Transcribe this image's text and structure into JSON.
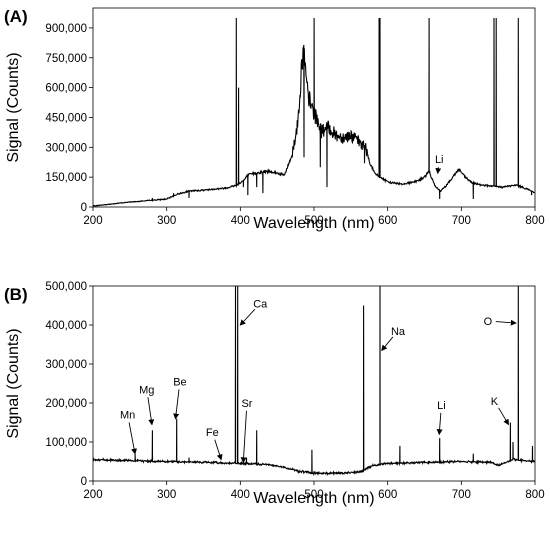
{
  "chart_data": [
    {
      "panel_label": "(A)",
      "type": "line",
      "xlabel": "Wavelength (nm)",
      "ylabel": "Signal (Counts)",
      "xlim": [
        200,
        800
      ],
      "ylim": [
        0,
        1000000
      ],
      "xticks": [
        200,
        300,
        400,
        500,
        600,
        700,
        800
      ],
      "yticks": [
        0,
        150000,
        300000,
        450000,
        600000,
        750000,
        900000
      ],
      "ytick_labels": [
        "0",
        "150,000",
        "300,000",
        "450,000",
        "600,000",
        "750,000",
        "900,000"
      ],
      "grid": false,
      "baseline": [
        [
          200,
          5000
        ],
        [
          250,
          25000
        ],
        [
          300,
          40000
        ],
        [
          315,
          65000
        ],
        [
          330,
          80000
        ],
        [
          350,
          85000
        ],
        [
          380,
          95000
        ],
        [
          395,
          110000
        ],
        [
          405,
          135000
        ],
        [
          410,
          160000
        ],
        [
          420,
          170000
        ],
        [
          440,
          180000
        ],
        [
          460,
          160000
        ],
        [
          470,
          260000
        ],
        [
          478,
          420000
        ],
        [
          483,
          690000
        ],
        [
          486,
          800000
        ],
        [
          490,
          600000
        ],
        [
          495,
          520000
        ],
        [
          500,
          470000
        ],
        [
          505,
          430000
        ],
        [
          510,
          380000
        ],
        [
          520,
          400000
        ],
        [
          530,
          360000
        ],
        [
          540,
          350000
        ],
        [
          550,
          360000
        ],
        [
          560,
          330000
        ],
        [
          570,
          300000
        ],
        [
          575,
          230000
        ],
        [
          582,
          170000
        ],
        [
          600,
          125000
        ],
        [
          620,
          115000
        ],
        [
          640,
          130000
        ],
        [
          650,
          150000
        ],
        [
          656,
          180000
        ],
        [
          665,
          100000
        ],
        [
          672,
          80000
        ],
        [
          680,
          110000
        ],
        [
          690,
          160000
        ],
        [
          697,
          190000
        ],
        [
          705,
          150000
        ],
        [
          715,
          120000
        ],
        [
          730,
          110000
        ],
        [
          740,
          105000
        ],
        [
          755,
          100000
        ],
        [
          775,
          110000
        ],
        [
          790,
          90000
        ],
        [
          800,
          70000
        ]
      ],
      "peaks": [
        [
          256,
          30000
        ],
        [
          280,
          45000
        ],
        [
          309,
          70000
        ],
        [
          330,
          45000
        ],
        [
          394,
          950000
        ],
        [
          397,
          600000
        ],
        [
          404,
          100000
        ],
        [
          410,
          60000
        ],
        [
          422,
          100000
        ],
        [
          430,
          70000
        ],
        [
          486,
          250000
        ],
        [
          500,
          950000
        ],
        [
          508,
          200000
        ],
        [
          517,
          100000
        ],
        [
          568,
          220000
        ],
        [
          588,
          950000
        ],
        [
          589,
          950000
        ],
        [
          656,
          950000
        ],
        [
          670,
          40000
        ],
        [
          716,
          40000
        ],
        [
          744,
          950000
        ],
        [
          747,
          950000
        ],
        [
          777,
          950000
        ],
        [
          795,
          60000
        ]
      ],
      "annotations": [
        {
          "text": "Li",
          "x": 670,
          "y": 220000,
          "arrow_to": [
            668,
            170000
          ]
        }
      ]
    },
    {
      "panel_label": "(B)",
      "type": "line",
      "xlabel": "Wavelength (nm)",
      "ylabel": "Signal (Counts)",
      "xlim": [
        200,
        800
      ],
      "ylim": [
        0,
        500000
      ],
      "xticks": [
        200,
        300,
        400,
        500,
        600,
        700,
        800
      ],
      "yticks": [
        0,
        100000,
        200000,
        300000,
        400000,
        500000
      ],
      "ytick_labels": [
        "0",
        "100,000",
        "200,000",
        "300,000",
        "400,000",
        "500,000"
      ],
      "grid": false,
      "baseline": [
        [
          200,
          55000
        ],
        [
          250,
          52000
        ],
        [
          300,
          50000
        ],
        [
          350,
          48000
        ],
        [
          400,
          45000
        ],
        [
          440,
          42000
        ],
        [
          460,
          35000
        ],
        [
          480,
          25000
        ],
        [
          500,
          20000
        ],
        [
          540,
          20000
        ],
        [
          565,
          25000
        ],
        [
          580,
          40000
        ],
        [
          600,
          45000
        ],
        [
          650,
          48000
        ],
        [
          700,
          50000
        ],
        [
          740,
          48000
        ],
        [
          750,
          40000
        ],
        [
          770,
          55000
        ],
        [
          800,
          50000
        ]
      ],
      "peaks": [
        [
          257,
          70000
        ],
        [
          280,
          130000
        ],
        [
          313,
          160000
        ],
        [
          330,
          60000
        ],
        [
          393,
          500000
        ],
        [
          396,
          500000
        ],
        [
          408,
          60000
        ],
        [
          422,
          130000
        ],
        [
          497,
          80000
        ],
        [
          567,
          450000
        ],
        [
          589,
          500000
        ],
        [
          616,
          90000
        ],
        [
          670,
          110000
        ],
        [
          716,
          70000
        ],
        [
          766,
          150000
        ],
        [
          770,
          100000
        ],
        [
          777,
          500000
        ],
        [
          796,
          90000
        ]
      ],
      "annotations": [
        {
          "text": "Mn",
          "x": 247,
          "y": 160000,
          "arrow_to": [
            257,
            70000
          ]
        },
        {
          "text": "Mg",
          "x": 273,
          "y": 225000,
          "arrow_to": [
            280,
            145000
          ]
        },
        {
          "text": "Be",
          "x": 318,
          "y": 245000,
          "arrow_to": [
            312,
            160000
          ]
        },
        {
          "text": "Fe",
          "x": 362,
          "y": 115000,
          "arrow_to": [
            374,
            55000
          ]
        },
        {
          "text": "Sr",
          "x": 409,
          "y": 190000,
          "arrow_to": [
            404,
            48000
          ]
        },
        {
          "text": "Ca",
          "x": 427,
          "y": 445000,
          "arrow_to": [
            400,
            400000
          ]
        },
        {
          "text": "Na",
          "x": 614,
          "y": 375000,
          "arrow_to": [
            592,
            335000
          ]
        },
        {
          "text": "Li",
          "x": 673,
          "y": 185000,
          "arrow_to": [
            670,
            120000
          ]
        },
        {
          "text": "K",
          "x": 745,
          "y": 195000,
          "arrow_to": [
            764,
            145000
          ]
        },
        {
          "text": "O",
          "x": 736,
          "y": 400000,
          "arrow_to": [
            774,
            405000
          ]
        }
      ]
    }
  ]
}
